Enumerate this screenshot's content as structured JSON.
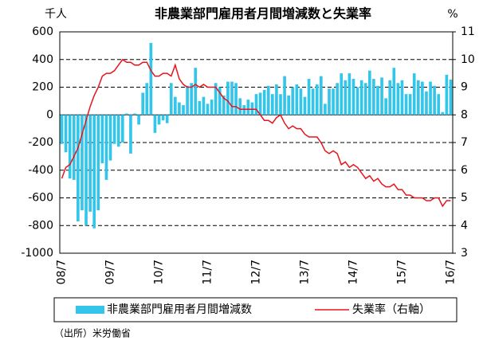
{
  "chart_data": {
    "type": "bar_line",
    "title": "非農業部門雇用者月間増減数と失業率",
    "y_unit": "千人",
    "y2_unit": "%",
    "source": "（出所）米労働省",
    "categories": [
      "08/7",
      null,
      null,
      null,
      null,
      null,
      null,
      null,
      null,
      null,
      null,
      null,
      "09/7",
      null,
      null,
      null,
      null,
      null,
      null,
      null,
      null,
      null,
      null,
      null,
      "10/7",
      null,
      null,
      null,
      null,
      null,
      null,
      null,
      null,
      null,
      null,
      null,
      "11/7",
      null,
      null,
      null,
      null,
      null,
      null,
      null,
      null,
      null,
      null,
      null,
      "12/7",
      null,
      null,
      null,
      null,
      null,
      null,
      null,
      null,
      null,
      null,
      null,
      "13/7",
      null,
      null,
      null,
      null,
      null,
      null,
      null,
      null,
      null,
      null,
      null,
      "14/7",
      null,
      null,
      null,
      null,
      null,
      null,
      null,
      null,
      null,
      null,
      null,
      "15/7",
      null,
      null,
      null,
      null,
      null,
      null,
      null,
      null,
      null,
      null,
      null,
      "16/7"
    ],
    "series": [
      {
        "name": "非農業部門雇用者月間増減数",
        "color": "#33c6ea",
        "values": [
          -210,
          -270,
          -460,
          -470,
          -770,
          -690,
          -800,
          -700,
          -820,
          -690,
          -350,
          -470,
          -330,
          -210,
          -230,
          -200,
          10,
          -280,
          10,
          -70,
          160,
          230,
          520,
          -130,
          -70,
          -40,
          -60,
          230,
          130,
          90,
          70,
          210,
          230,
          340,
          100,
          130,
          80,
          110,
          230,
          200,
          140,
          240,
          240,
          230,
          120,
          70,
          110,
          90,
          150,
          160,
          180,
          210,
          150,
          220,
          150,
          280,
          140,
          200,
          220,
          190,
          130,
          260,
          190,
          220,
          280,
          80,
          190,
          190,
          230,
          300,
          250,
          300,
          260,
          200,
          250,
          230,
          320,
          260,
          210,
          270,
          120,
          250,
          340,
          230,
          250,
          150,
          150,
          300,
          250,
          240,
          170,
          240,
          210,
          150,
          20,
          290,
          255
        ]
      },
      {
        "name": "失業率（右軸）",
        "color": "#e8141c",
        "axis": "y2",
        "values": [
          5.7,
          6.1,
          6.2,
          6.5,
          6.8,
          7.3,
          7.8,
          8.3,
          8.7,
          9.0,
          9.4,
          9.5,
          9.5,
          9.6,
          9.8,
          10.0,
          9.9,
          9.9,
          9.8,
          9.8,
          9.9,
          9.9,
          9.6,
          9.4,
          9.4,
          9.5,
          9.5,
          9.4,
          9.8,
          9.3,
          9.1,
          9.0,
          9.0,
          9.1,
          9.0,
          9.1,
          9.0,
          9.0,
          9.0,
          8.8,
          8.6,
          8.5,
          8.3,
          8.3,
          8.2,
          8.2,
          8.2,
          8.2,
          8.2,
          8.0,
          7.8,
          7.8,
          7.7,
          7.9,
          8.0,
          7.7,
          7.5,
          7.6,
          7.5,
          7.5,
          7.3,
          7.2,
          7.2,
          7.2,
          7.0,
          6.7,
          6.6,
          6.7,
          6.6,
          6.2,
          6.3,
          6.1,
          6.2,
          6.1,
          5.9,
          5.7,
          5.8,
          5.6,
          5.7,
          5.5,
          5.4,
          5.4,
          5.5,
          5.3,
          5.3,
          5.1,
          5.1,
          5.0,
          5.0,
          5.0,
          4.9,
          4.9,
          5.0,
          5.0,
          4.7,
          4.9,
          4.9
        ]
      }
    ],
    "ylim": [
      -1000,
      600
    ],
    "yticks": [
      -1000,
      -800,
      -600,
      -400,
      -200,
      0,
      200,
      400,
      600
    ],
    "y2lim": [
      3,
      11
    ],
    "y2ticks": [
      3,
      4,
      5,
      6,
      7,
      8,
      9,
      10,
      11
    ],
    "grid": true,
    "legend": "bottom"
  }
}
